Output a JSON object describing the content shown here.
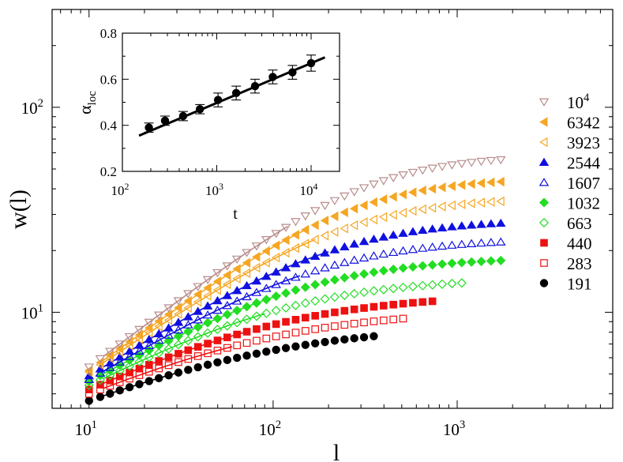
{
  "chart_data": [
    {
      "type": "scatter",
      "xlabel": "l",
      "ylabel": "w(l)",
      "xscale": "log",
      "yscale": "log",
      "xlim": [
        6.3,
        7000
      ],
      "ylim": [
        3.4,
        300
      ],
      "x_ticks": [
        {
          "value": 10,
          "base": "10",
          "exp": "1"
        },
        {
          "value": 100,
          "base": "10",
          "exp": "2"
        },
        {
          "value": 1000,
          "base": "10",
          "exp": "3"
        }
      ],
      "y_ticks": [
        {
          "value": 10,
          "base": "10",
          "exp": "1"
        },
        {
          "value": 100,
          "base": "10",
          "exp": "2"
        }
      ],
      "legend_position": "right",
      "series": [
        {
          "name": "10",
          "name_exp": "4",
          "t": 10000,
          "marker": "tri-down-open",
          "color": "#b88c8c",
          "w10": 5.4,
          "wmax": 58,
          "lmax": 1800,
          "fit_exp": 0.68,
          "fit_to": 120
        },
        {
          "name": "6342",
          "t": 6342,
          "marker": "tri-left-filled",
          "color": "#f5a623",
          "w10": 5.2,
          "wmax": 45,
          "lmax": 1800,
          "fit_exp": 0.65,
          "fit_to": 150
        },
        {
          "name": "3923",
          "t": 3923,
          "marker": "tri-left-open",
          "color": "#f5a623",
          "w10": 5.1,
          "wmax": 36,
          "lmax": 1800,
          "fit_exp": 0.61,
          "fit_to": 170
        },
        {
          "name": "2544",
          "t": 2544,
          "marker": "tri-up-filled",
          "color": "#1010e0",
          "w10": 4.9,
          "wmax": 28,
          "lmax": 1800,
          "fit_exp": 0.57,
          "fit_to": 200
        },
        {
          "name": "1607",
          "t": 1607,
          "marker": "tri-up-open",
          "color": "#1010e0",
          "w10": 4.7,
          "wmax": 22.5,
          "lmax": 1800,
          "fit_exp": 0.54,
          "fit_to": 140
        },
        {
          "name": "1032",
          "t": 1032,
          "marker": "diamond-filled",
          "color": "#22dd22",
          "w10": 4.6,
          "wmax": 18,
          "lmax": 1800,
          "fit_exp": 0.51,
          "fit_to": 110
        },
        {
          "name": "663",
          "t": 663,
          "marker": "diamond-open",
          "color": "#22dd22",
          "w10": 4.4,
          "wmax": 14,
          "lmax": 1100,
          "fit_exp": 0.48,
          "fit_to": 90
        },
        {
          "name": "440",
          "t": 440,
          "marker": "square-filled",
          "color": "#ee1111",
          "w10": 4.2,
          "wmax": 11.5,
          "lmax": 800,
          "fit_exp": 0.44,
          "fit_to": 70
        },
        {
          "name": "283",
          "t": 283,
          "marker": "square-open",
          "color": "#ee1111",
          "w10": 4.0,
          "wmax": 9.5,
          "lmax": 550,
          "fit_exp": 0.41,
          "fit_to": 60
        },
        {
          "name": "191",
          "t": 191,
          "marker": "circle-filled",
          "color": "#000000",
          "w10": 3.7,
          "wmax": 7.9,
          "lmax": 360,
          "fit_exp": 0.38,
          "fit_to": 30
        }
      ]
    },
    {
      "type": "scatter",
      "inset": true,
      "xlabel": "t",
      "ylabel_main": "α",
      "ylabel_sub": "loc",
      "xscale": "log",
      "xlim": [
        100,
        20000
      ],
      "ylim": [
        0.2,
        0.8
      ],
      "x_ticks": [
        {
          "value": 100,
          "base": "10",
          "exp": "2"
        },
        {
          "value": 1000,
          "base": "10",
          "exp": "3"
        },
        {
          "value": 10000,
          "base": "10",
          "exp": "4"
        }
      ],
      "y_ticks": [
        {
          "value": 0.2,
          "label": "0.2"
        },
        {
          "value": 0.4,
          "label": "0.4"
        },
        {
          "value": 0.6,
          "label": "0.6"
        },
        {
          "value": 0.8,
          "label": "0.8"
        }
      ],
      "points": [
        {
          "t": 191,
          "alpha": 0.39,
          "err": 0.02
        },
        {
          "t": 283,
          "alpha": 0.42,
          "err": 0.02
        },
        {
          "t": 440,
          "alpha": 0.44,
          "err": 0.02
        },
        {
          "t": 663,
          "alpha": 0.47,
          "err": 0.02
        },
        {
          "t": 1032,
          "alpha": 0.51,
          "err": 0.03
        },
        {
          "t": 1607,
          "alpha": 0.54,
          "err": 0.03
        },
        {
          "t": 2544,
          "alpha": 0.57,
          "err": 0.03
        },
        {
          "t": 3923,
          "alpha": 0.61,
          "err": 0.03
        },
        {
          "t": 6342,
          "alpha": 0.63,
          "err": 0.03
        },
        {
          "t": 10000,
          "alpha": 0.67,
          "err": 0.035
        }
      ],
      "fit": {
        "t_from": 150,
        "t_to": 14000,
        "a_from": 0.355,
        "a_to": 0.695
      }
    }
  ]
}
